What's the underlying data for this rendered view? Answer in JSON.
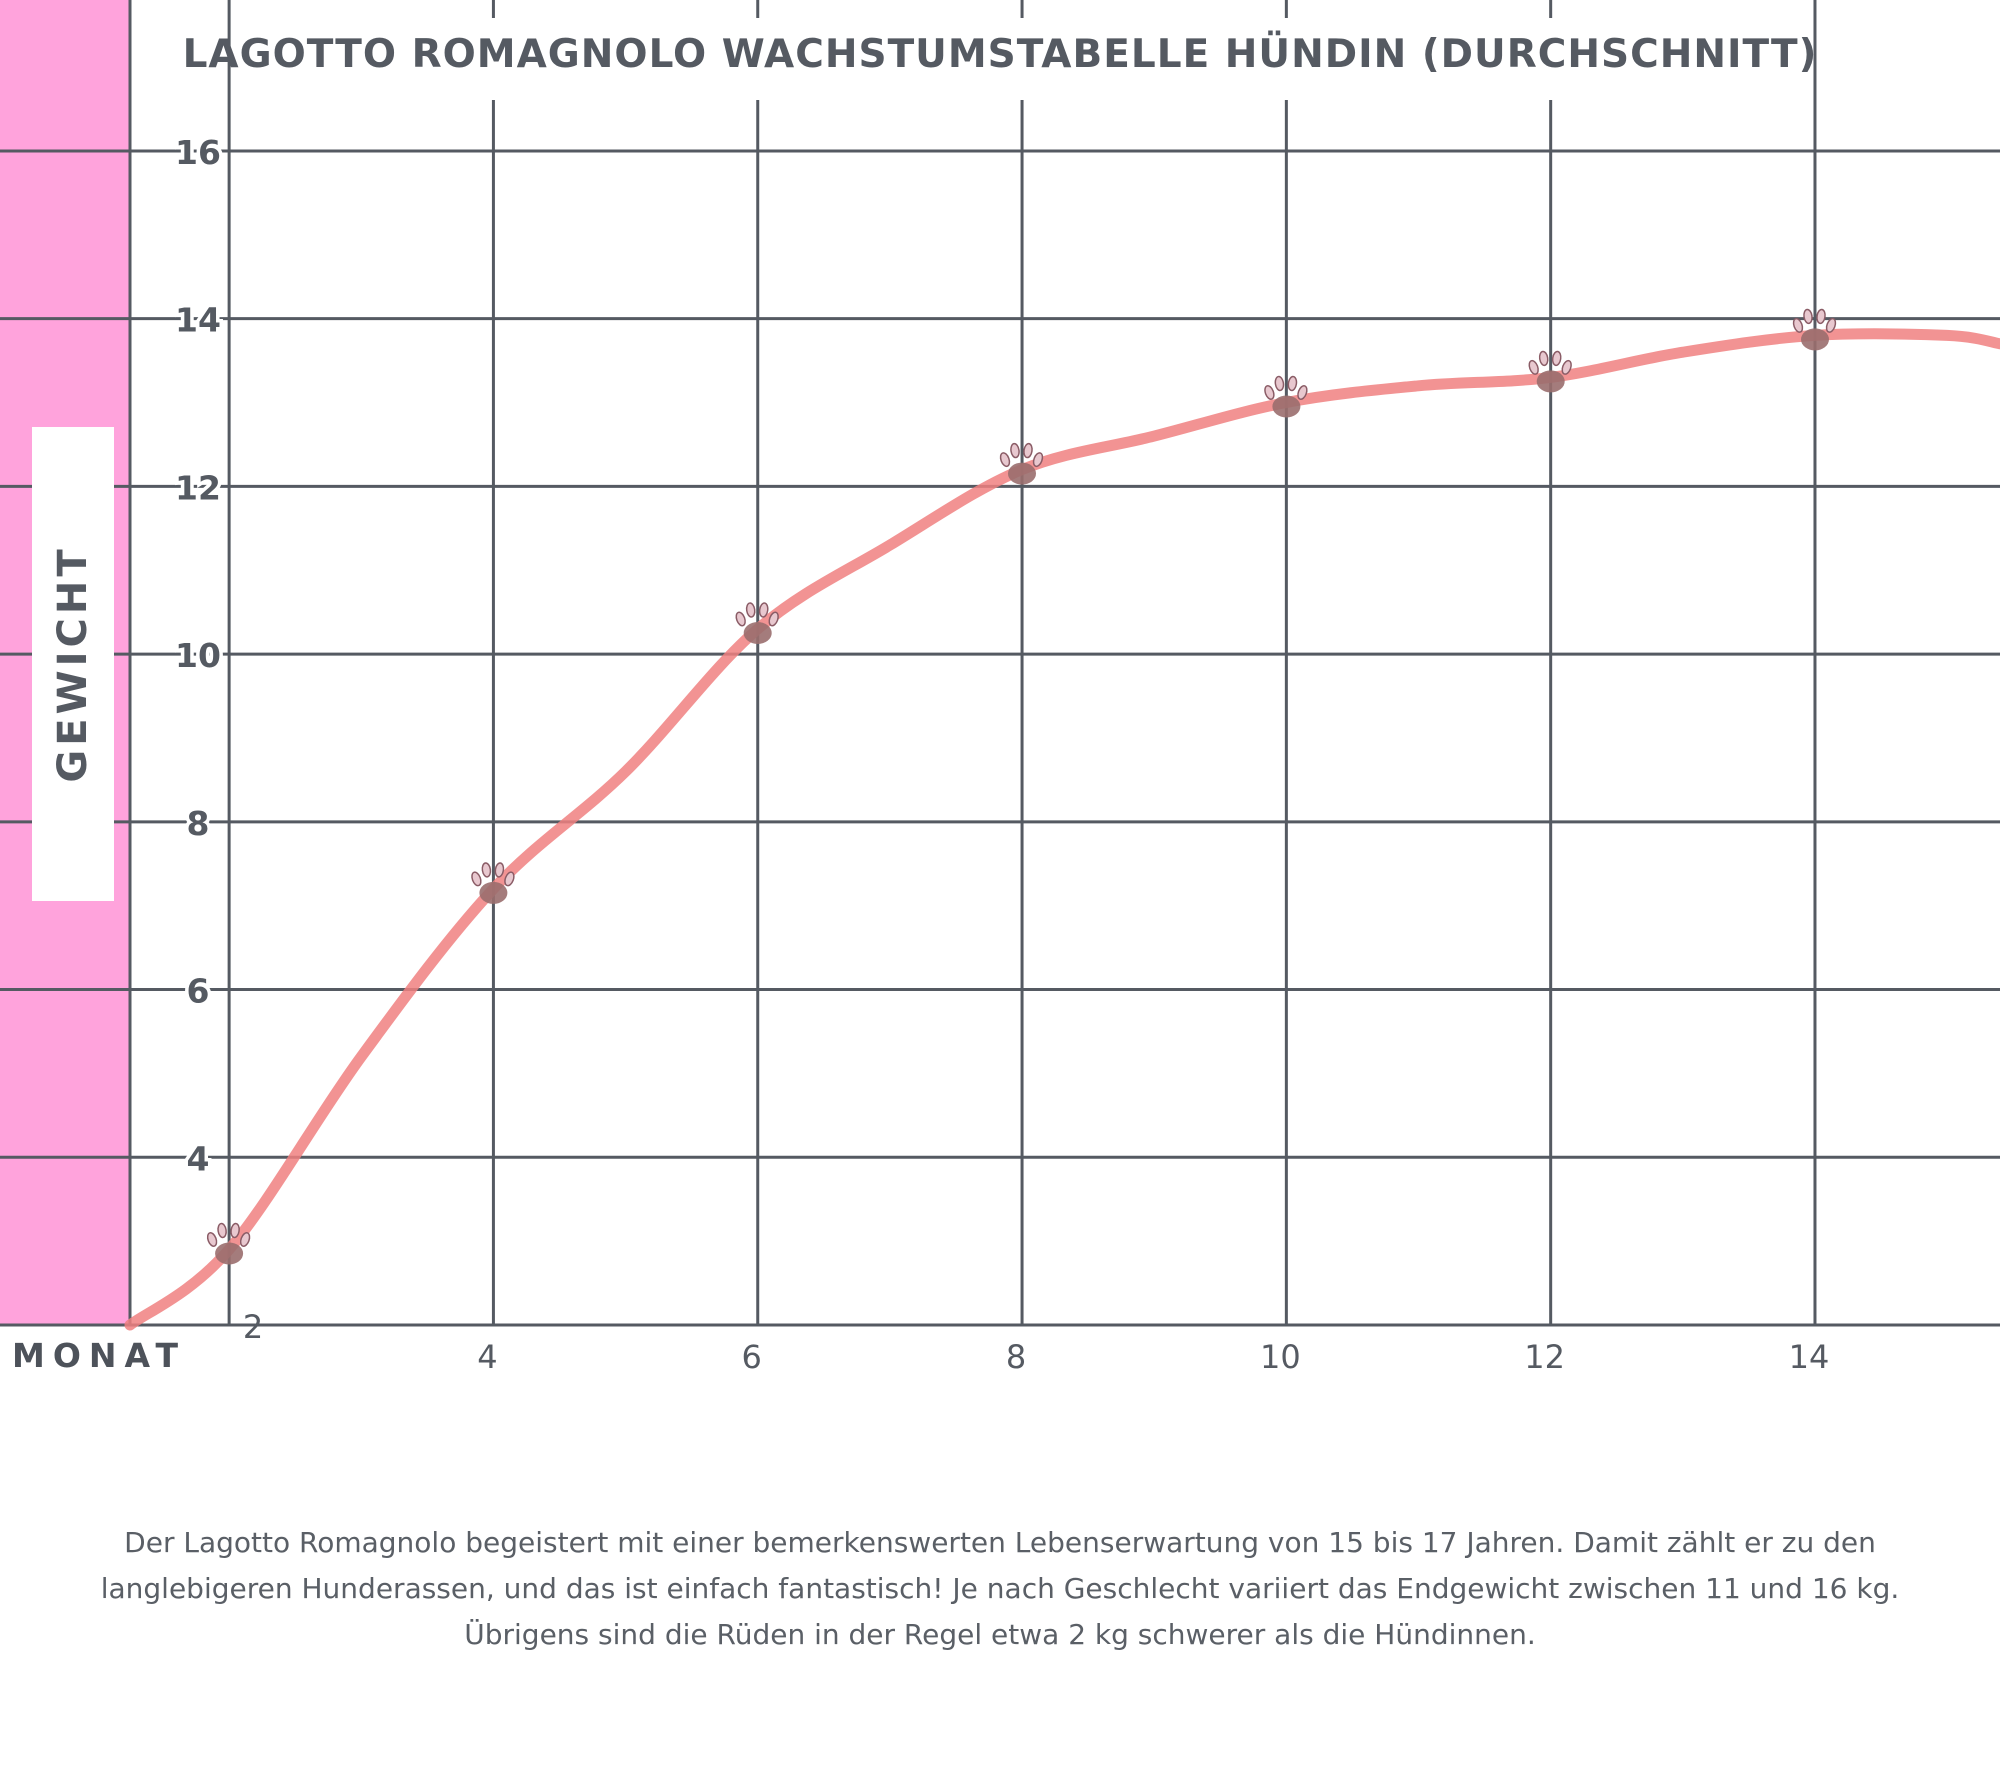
{
  "colors": {
    "sidebar": "#ffa3dc",
    "grid": "#555a62",
    "line": "#f08080",
    "text": "#555a62"
  },
  "title": "LAGOTTO ROMAGNOLO WACHSTUMSTABELLE HÜNDIN (DURCHSCHNITT)",
  "y_axis_label": "GEWICHT",
  "x_axis_label": "MONAT",
  "marker_icon": "paw-icon",
  "caption": [
    "Der Lagotto Romagnolo begeistert mit einer bemerkenswerten Lebenserwartung von 15 bis 17 Jahren. Damit zählt er zu den",
    "langlebigeren Hunderassen, und das ist einfach fantastisch! Je nach Geschlecht variiert das Endgewicht zwischen 11 und 16 kg.",
    "Übrigens sind die Rüden in der Regel etwa 2 kg schwerer als die Hündinnen."
  ],
  "chart_data": {
    "type": "line",
    "title": "LAGOTTO ROMAGNOLO WACHSTUMSTABELLE HÜNDIN (DURCHSCHNITT)",
    "xlabel": "MONAT",
    "ylabel": "GEWICHT",
    "x_ticks": [
      "2",
      "4",
      "6",
      "8",
      "10",
      "12",
      "14"
    ],
    "y_ticks": [
      "4",
      "6",
      "8",
      "10",
      "12",
      "14",
      "16"
    ],
    "xlim": [
      1.25,
      15.4
    ],
    "ylim": [
      2,
      17.8
    ],
    "grid": true,
    "series": [
      {
        "x": [
          1.25,
          2,
          3,
          4,
          5,
          6,
          7,
          8,
          9,
          10,
          11,
          12,
          13,
          14,
          15,
          15.4
        ],
        "y": [
          2,
          2.9,
          5.2,
          7.2,
          8.6,
          10.3,
          11.3,
          12.2,
          12.6,
          13.0,
          13.2,
          13.3,
          13.6,
          13.8,
          13.8,
          13.7
        ]
      }
    ],
    "markers": {
      "x": [
        2,
        4,
        6,
        8,
        10,
        12,
        14
      ],
      "y": [
        2.9,
        7.2,
        10.3,
        12.2,
        13.0,
        13.3,
        13.8
      ]
    }
  }
}
